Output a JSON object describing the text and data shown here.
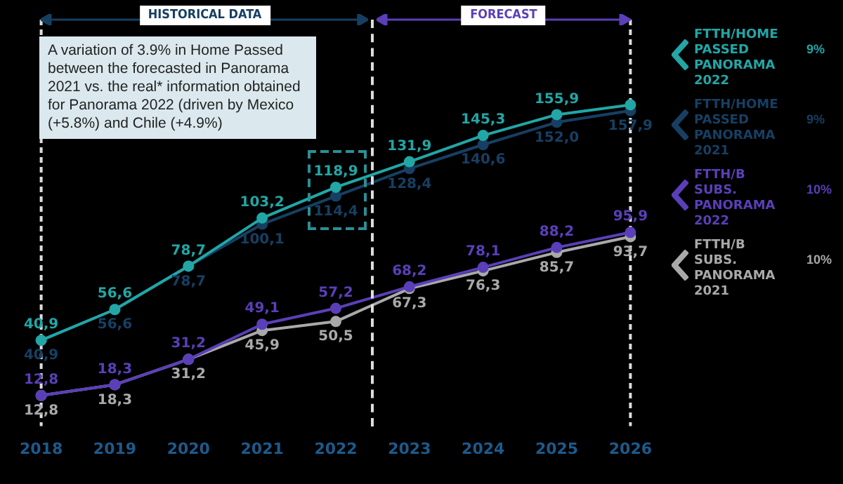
{
  "chart_data": {
    "type": "line",
    "categories": [
      "2018",
      "2019",
      "2020",
      "2021",
      "2022",
      "2023",
      "2024",
      "2025",
      "2026"
    ],
    "series": [
      {
        "name": "FTTH/HOME PASSED PANORAMA 2022",
        "color": "#22a6a6",
        "values": [
          40.9,
          56.6,
          78.7,
          103.2,
          118.9,
          131.9,
          145.3,
          155.9,
          160.9
        ],
        "value_labels": [
          "40,9",
          "56,6",
          "78,7",
          "103,2",
          "118,9",
          "131,9",
          "145,3",
          "155,9",
          null
        ]
      },
      {
        "name": "FTTH/HOME PASSED PANORAMA 2021",
        "color": "#173f63",
        "values": [
          40.9,
          56.6,
          78.7,
          100.1,
          114.4,
          128.4,
          140.6,
          152.0,
          157.9
        ],
        "value_labels": [
          "40,9",
          "56,6",
          "78,7",
          "100,1",
          "114,4",
          "128,4",
          "140,6",
          "152,0",
          "157,9"
        ]
      },
      {
        "name": "FTTH/B SUBS. PANORAMA 2022",
        "color": "#5a3fb8",
        "values": [
          12.8,
          18.3,
          31.2,
          49.1,
          57.2,
          68.2,
          78.1,
          88.2,
          95.9
        ],
        "value_labels": [
          "12,8",
          "18,3",
          "31,2",
          "49,1",
          "57,2",
          "68,2",
          "78,1",
          "88,2",
          "95,9"
        ]
      },
      {
        "name": "FTTH/B SUBS. PANORAMA 2021",
        "color": "#a9a9a9",
        "values": [
          12.8,
          18.3,
          31.2,
          45.9,
          50.5,
          67.3,
          76.3,
          85.7,
          93.7
        ],
        "value_labels": [
          "12,8",
          "18,3",
          "31,2",
          "45,9",
          "50,5",
          "67,3",
          "76,3",
          "85,7",
          "93,7"
        ]
      }
    ],
    "annotations": [
      "A variation of 3.9% in Home Passed between the forecasted in Panorama 2021 vs. the real* information obtained for Panorama 2022 (driven by Mexico (+5.8%) and Chile (+4.9%)",
      "HISTORICAL DATA",
      "FORECAST",
      "9%",
      "9%",
      "10%",
      "10%"
    ],
    "ref_lines": [
      {
        "axis": "x",
        "value": "2018",
        "color": "#dddddd",
        "line_style": "dashed"
      },
      {
        "axis": "x",
        "value": "2026",
        "color": "#dddddd",
        "line_style": "dashed"
      }
    ],
    "marker": "circle",
    "legend": "right"
  }
}
